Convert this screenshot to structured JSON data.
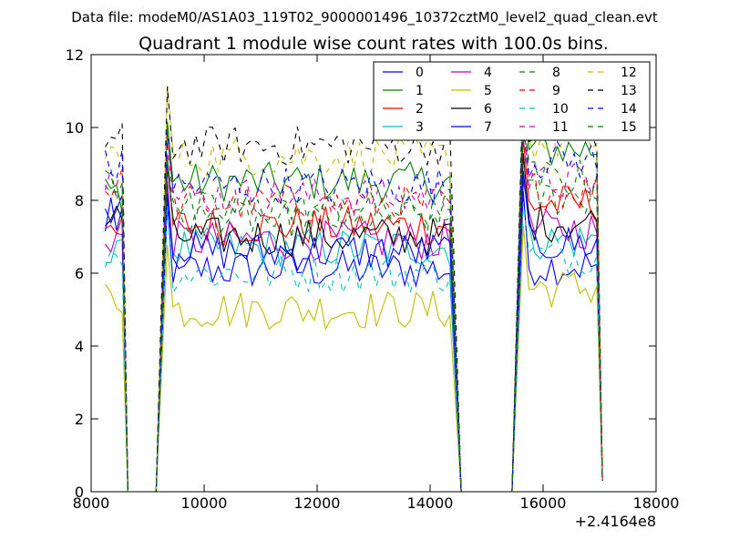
{
  "figure": {
    "suptitle": "Data file: modeM0/AS1A03_119T02_9000001496_10372cztM0_level2_quad_clean.evt"
  },
  "chart_data": {
    "type": "line",
    "title": "Quadrant 1 module wise count rates with 100.0s bins.",
    "xlabel": "",
    "ylabel": "",
    "x_offset_label": "+2.4164e8",
    "xlim": [
      8000,
      18000
    ],
    "ylim": [
      0,
      12
    ],
    "xticks": [
      8000,
      10000,
      12000,
      14000,
      16000,
      18000
    ],
    "xtick_labels": [
      "8000",
      "10000",
      "12000",
      "14000",
      "16000",
      "18000"
    ],
    "yticks": [
      0,
      2,
      4,
      6,
      8,
      10,
      12
    ],
    "ytick_labels": [
      "0",
      "2",
      "4",
      "6",
      "8",
      "10",
      "12"
    ],
    "grid": false,
    "legend_position": "top-right",
    "legend_columns": 4,
    "segments": [
      {
        "x_start": 8250,
        "x_end": 8650
      },
      {
        "x_start": 9350,
        "x_end": 14450
      },
      {
        "x_start": 15650,
        "x_end": 17050
      }
    ],
    "drop_points": [
      {
        "x": 8650,
        "y": 0
      },
      {
        "x": 9150,
        "y": 0
      },
      {
        "x": 14550,
        "y": 0
      },
      {
        "x": 15450,
        "y": 0
      },
      {
        "x": 17050,
        "y": 0.3
      }
    ],
    "series": [
      {
        "name": "0",
        "color": "#0000ff",
        "dash": false,
        "level": 6.1,
        "first_segment_level": 7.6,
        "last_segment_level": 6.2
      },
      {
        "name": "1",
        "color": "#008000",
        "dash": false,
        "level": 8.5,
        "first_segment_level": 8.2,
        "last_segment_level": 9.4
      },
      {
        "name": "2",
        "color": "#ff0000",
        "dash": false,
        "level": 7.3,
        "first_segment_level": 7.5,
        "last_segment_level": 7.9
      },
      {
        "name": "3",
        "color": "#00bfbf",
        "dash": false,
        "level": 6.7,
        "first_segment_level": 6.4,
        "last_segment_level": 6.9
      },
      {
        "name": "4",
        "color": "#bf00bf",
        "dash": false,
        "level": 6.9,
        "first_segment_level": 7.0,
        "last_segment_level": 7.2
      },
      {
        "name": "5",
        "color": "#bfbf00",
        "dash": false,
        "level": 5.0,
        "first_segment_level": 5.3,
        "last_segment_level": 5.6
      },
      {
        "name": "6",
        "color": "#000000",
        "dash": false,
        "level": 7.0,
        "first_segment_level": 7.5,
        "last_segment_level": 7.4
      },
      {
        "name": "7",
        "color": "#0000ff",
        "dash": false,
        "level": 6.6,
        "first_segment_level": 7.7,
        "last_segment_level": 6.8
      },
      {
        "name": "8",
        "color": "#008000",
        "dash": true,
        "level": 7.5,
        "first_segment_level": 8.3,
        "last_segment_level": 8.1
      },
      {
        "name": "9",
        "color": "#ff0000",
        "dash": true,
        "level": 7.9,
        "first_segment_level": 8.4,
        "last_segment_level": 8.3
      },
      {
        "name": "10",
        "color": "#00bfbf",
        "dash": true,
        "level": 6.0,
        "first_segment_level": 6.6,
        "last_segment_level": 6.5
      },
      {
        "name": "11",
        "color": "#bf00bf",
        "dash": true,
        "level": 8.1,
        "first_segment_level": 8.6,
        "last_segment_level": 8.5
      },
      {
        "name": "12",
        "color": "#bfbf00",
        "dash": true,
        "level": 9.2,
        "first_segment_level": 9.2,
        "last_segment_level": 9.6
      },
      {
        "name": "13",
        "color": "#000000",
        "dash": true,
        "level": 9.5,
        "first_segment_level": 9.6,
        "last_segment_level": 9.9
      },
      {
        "name": "14",
        "color": "#0000ff",
        "dash": true,
        "level": 8.4,
        "first_segment_level": 8.9,
        "last_segment_level": 9.1
      },
      {
        "name": "15",
        "color": "#008000",
        "dash": true,
        "level": 7.7,
        "first_segment_level": 8.5,
        "last_segment_level": 8.6
      }
    ]
  }
}
